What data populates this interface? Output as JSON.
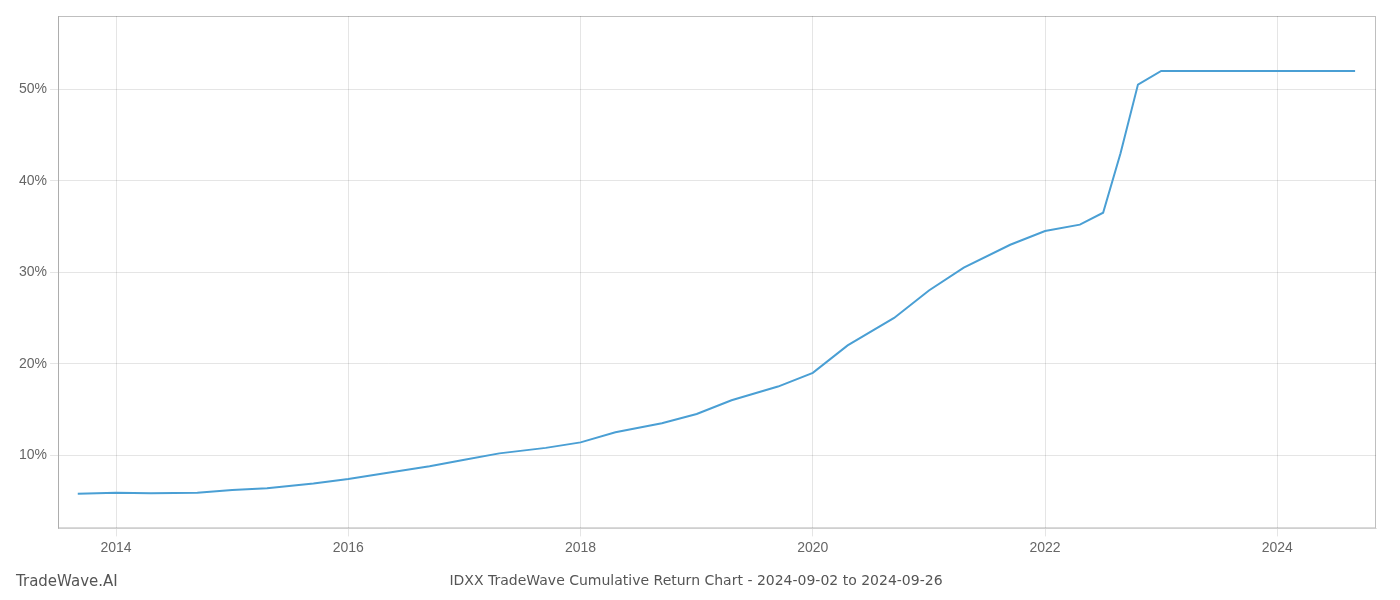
{
  "chart_data": {
    "type": "line",
    "title": "IDXX TradeWave Cumulative Return Chart - 2024-09-02 to 2024-09-26",
    "annotations": [
      "TradeWave.AI"
    ],
    "color": "#4a9fd4",
    "x": [
      2013.67,
      2014.0,
      2014.3,
      2014.7,
      2015.0,
      2015.3,
      2015.7,
      2016.0,
      2016.3,
      2016.7,
      2017.0,
      2017.3,
      2017.7,
      2018.0,
      2018.3,
      2018.7,
      2019.0,
      2019.3,
      2019.7,
      2020.0,
      2020.3,
      2020.7,
      2021.0,
      2021.3,
      2021.7,
      2022.0,
      2022.3,
      2022.5,
      2022.65,
      2022.8,
      2023.0,
      2023.3,
      2023.7,
      2024.0,
      2024.3,
      2024.67
    ],
    "values": [
      5.8,
      5.9,
      5.85,
      5.9,
      6.2,
      6.4,
      6.9,
      7.4,
      8.0,
      8.8,
      9.5,
      10.2,
      10.8,
      11.4,
      12.5,
      13.5,
      14.5,
      16.0,
      17.5,
      19.0,
      22.0,
      25.0,
      28.0,
      30.5,
      33.0,
      34.5,
      35.2,
      36.5,
      43.0,
      50.5,
      52.0,
      52.0,
      52.0,
      52.0,
      52.0,
      52.0
    ],
    "xlim": [
      2013.5,
      2024.85
    ],
    "ylim": [
      2,
      58
    ],
    "xticks": [
      2014,
      2016,
      2018,
      2020,
      2022,
      2024
    ],
    "yticks": [
      {
        "value": 10,
        "label": "10%"
      },
      {
        "value": 20,
        "label": "20%"
      },
      {
        "value": 30,
        "label": "30%"
      },
      {
        "value": 40,
        "label": "40%"
      },
      {
        "value": 50,
        "label": "50%"
      }
    ],
    "grid": true
  }
}
